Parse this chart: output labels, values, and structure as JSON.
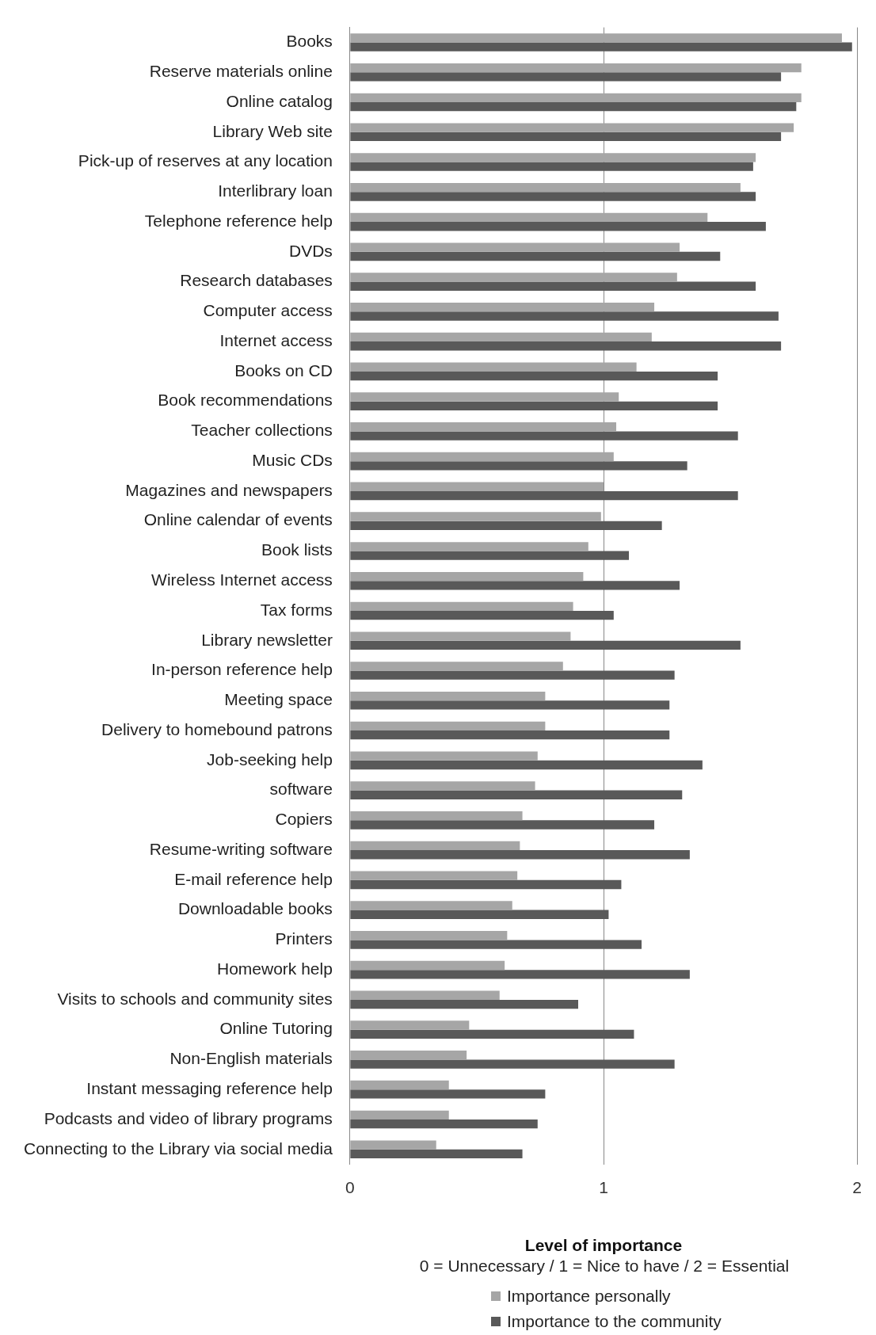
{
  "chart_data": {
    "type": "bar",
    "orientation": "horizontal",
    "xlabel": "Level of importance",
    "annotations": [
      "0 = Unnecessary / 1 = Nice to have / 2 = Essential"
    ],
    "categories": [
      "Books",
      "Reserve materials online",
      "Online catalog",
      "Library Web site",
      "Pick-up of reserves at any location",
      "Interlibrary loan",
      "Telephone reference help",
      "DVDs",
      "Research databases",
      "Computer access",
      "Internet access",
      "Books on CD",
      "Book recommendations",
      "Teacher collections",
      "Music CDs",
      "Magazines and newspapers",
      "Online calendar of events",
      "Book lists",
      "Wireless Internet access",
      "Tax forms",
      "Library newsletter",
      "In-person reference help",
      "Meeting space",
      "Delivery to homebound patrons",
      "Job-seeking help",
      "software",
      "Copiers",
      "Resume-writing software",
      "E-mail reference help",
      "Downloadable books",
      "Printers",
      "Homework help",
      "Visits to schools and community sites",
      "Online Tutoring",
      "Non-English materials",
      "Instant messaging reference help",
      "Podcasts and video of library programs",
      "Connecting to the Library via social media"
    ],
    "series": [
      {
        "name": "Importance personally",
        "color": "#a6a6a6",
        "values": [
          1.94,
          1.78,
          1.78,
          1.75,
          1.6,
          1.54,
          1.41,
          1.3,
          1.29,
          1.2,
          1.19,
          1.13,
          1.06,
          1.05,
          1.04,
          1.0,
          0.99,
          0.94,
          0.92,
          0.88,
          0.87,
          0.84,
          0.77,
          0.77,
          0.74,
          0.73,
          0.68,
          0.67,
          0.66,
          0.64,
          0.62,
          0.61,
          0.59,
          0.47,
          0.46,
          0.39,
          0.39,
          0.34
        ]
      },
      {
        "name": "Importance to the community",
        "color": "#595959",
        "values": [
          1.98,
          1.7,
          1.76,
          1.7,
          1.59,
          1.6,
          1.64,
          1.46,
          1.6,
          1.69,
          1.7,
          1.45,
          1.45,
          1.53,
          1.33,
          1.53,
          1.23,
          1.1,
          1.3,
          1.04,
          1.54,
          1.28,
          1.26,
          1.26,
          1.39,
          1.31,
          1.2,
          1.34,
          1.07,
          1.02,
          1.15,
          1.34,
          0.9,
          1.12,
          1.28,
          0.77,
          0.74,
          0.68
        ]
      }
    ],
    "xlim": [
      0,
      2
    ],
    "xticks": [
      0,
      1,
      2
    ],
    "grid": "x",
    "legend": "bottom"
  }
}
